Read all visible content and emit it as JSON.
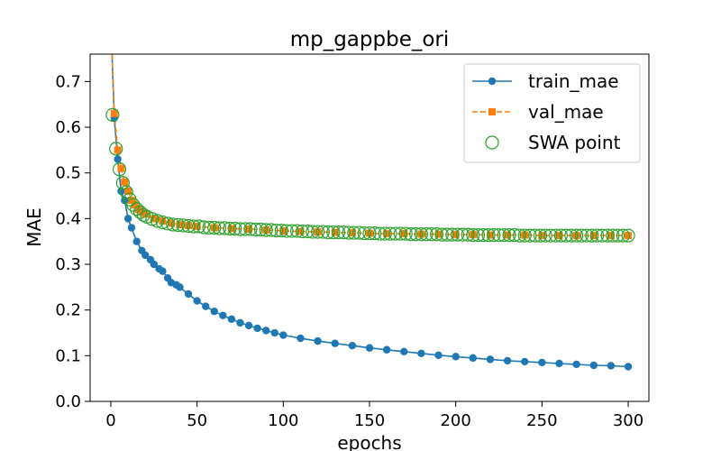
{
  "chart_data": {
    "type": "line",
    "title": "mp_gappbe_ori",
    "xlabel": "epochs",
    "ylabel": "MAE",
    "xlim": [
      -12,
      312
    ],
    "ylim": [
      0.0,
      0.76
    ],
    "xticks": [
      0,
      50,
      100,
      150,
      200,
      250,
      300
    ],
    "yticks": [
      0.0,
      0.1,
      0.2,
      0.3,
      0.4,
      0.5,
      0.6,
      0.7
    ],
    "grid": false,
    "legend_position": "top-right",
    "colors": {
      "train": "#1f77b4",
      "val": "#ff7f0e",
      "swa": "#2ca02c"
    },
    "series": [
      {
        "name": "train_mae",
        "marker": "circle",
        "linestyle": "solid",
        "x": [
          0,
          2,
          4,
          6,
          8,
          10,
          12,
          15,
          18,
          20,
          23,
          25,
          28,
          30,
          33,
          35,
          38,
          40,
          45,
          50,
          55,
          60,
          65,
          70,
          75,
          80,
          85,
          90,
          95,
          100,
          110,
          120,
          130,
          140,
          150,
          160,
          170,
          180,
          190,
          200,
          210,
          220,
          230,
          240,
          250,
          260,
          270,
          280,
          290,
          300
        ],
        "y": [
          0.83,
          0.62,
          0.53,
          0.46,
          0.44,
          0.4,
          0.38,
          0.35,
          0.33,
          0.32,
          0.31,
          0.3,
          0.29,
          0.285,
          0.27,
          0.26,
          0.255,
          0.25,
          0.235,
          0.22,
          0.208,
          0.197,
          0.188,
          0.18,
          0.172,
          0.166,
          0.16,
          0.155,
          0.15,
          0.145,
          0.138,
          0.132,
          0.127,
          0.122,
          0.117,
          0.113,
          0.109,
          0.105,
          0.101,
          0.098,
          0.095,
          0.092,
          0.089,
          0.087,
          0.085,
          0.083,
          0.081,
          0.079,
          0.078,
          0.076
        ]
      },
      {
        "name": "val_mae",
        "marker": "square",
        "linestyle": "dashed",
        "x": [
          0,
          2,
          4,
          6,
          8,
          10,
          12,
          14,
          16,
          18,
          20,
          25,
          30,
          35,
          40,
          45,
          50,
          60,
          70,
          80,
          90,
          100,
          110,
          120,
          130,
          140,
          150,
          160,
          170,
          180,
          190,
          200,
          210,
          220,
          230,
          240,
          250,
          260,
          270,
          280,
          290,
          300
        ],
        "y": [
          0.83,
          0.63,
          0.55,
          0.51,
          0.48,
          0.46,
          0.44,
          0.43,
          0.42,
          0.415,
          0.41,
          0.4,
          0.395,
          0.39,
          0.387,
          0.385,
          0.383,
          0.38,
          0.378,
          0.377,
          0.375,
          0.373,
          0.372,
          0.371,
          0.37,
          0.369,
          0.368,
          0.367,
          0.367,
          0.366,
          0.366,
          0.365,
          0.365,
          0.364,
          0.364,
          0.364,
          0.363,
          0.363,
          0.363,
          0.363,
          0.363,
          0.363
        ]
      },
      {
        "name": "SWA point",
        "marker": "open-circle",
        "linestyle": "none",
        "x": [
          1,
          3,
          5,
          7,
          9,
          11,
          13,
          15,
          17,
          19,
          21,
          24,
          27,
          30,
          33,
          36,
          39,
          42,
          45,
          48,
          51,
          54,
          57,
          60,
          63,
          66,
          69,
          72,
          75,
          78,
          81,
          84,
          87,
          90,
          93,
          96,
          99,
          102,
          105,
          108,
          111,
          114,
          117,
          120,
          123,
          126,
          129,
          132,
          135,
          138,
          141,
          144,
          147,
          150,
          153,
          156,
          159,
          162,
          165,
          168,
          171,
          174,
          177,
          180,
          183,
          186,
          189,
          192,
          195,
          198,
          201,
          204,
          207,
          210,
          213,
          216,
          219,
          222,
          225,
          228,
          231,
          234,
          237,
          240,
          243,
          246,
          249,
          252,
          255,
          258,
          261,
          264,
          267,
          270,
          273,
          276,
          279,
          282,
          285,
          288,
          291,
          294,
          297,
          300
        ],
        "y": [
          0.627,
          0.553,
          0.508,
          0.478,
          0.458,
          0.442,
          0.43,
          0.421,
          0.414,
          0.408,
          0.404,
          0.399,
          0.395,
          0.392,
          0.389,
          0.387,
          0.386,
          0.385,
          0.384,
          0.383,
          0.383,
          0.381,
          0.38,
          0.38,
          0.379,
          0.379,
          0.378,
          0.378,
          0.377,
          0.377,
          0.377,
          0.376,
          0.376,
          0.375,
          0.375,
          0.374,
          0.374,
          0.373,
          0.373,
          0.373,
          0.372,
          0.372,
          0.371,
          0.371,
          0.371,
          0.37,
          0.37,
          0.37,
          0.37,
          0.369,
          0.369,
          0.369,
          0.368,
          0.368,
          0.368,
          0.367,
          0.367,
          0.367,
          0.367,
          0.367,
          0.367,
          0.366,
          0.366,
          0.366,
          0.366,
          0.366,
          0.366,
          0.365,
          0.365,
          0.365,
          0.365,
          0.365,
          0.365,
          0.364,
          0.364,
          0.364,
          0.364,
          0.364,
          0.364,
          0.364,
          0.364,
          0.364,
          0.363,
          0.363,
          0.363,
          0.363,
          0.363,
          0.363,
          0.363,
          0.363,
          0.363,
          0.363,
          0.363,
          0.363,
          0.363,
          0.363,
          0.363,
          0.363,
          0.363,
          0.363,
          0.363,
          0.363,
          0.363,
          0.363
        ]
      }
    ]
  }
}
